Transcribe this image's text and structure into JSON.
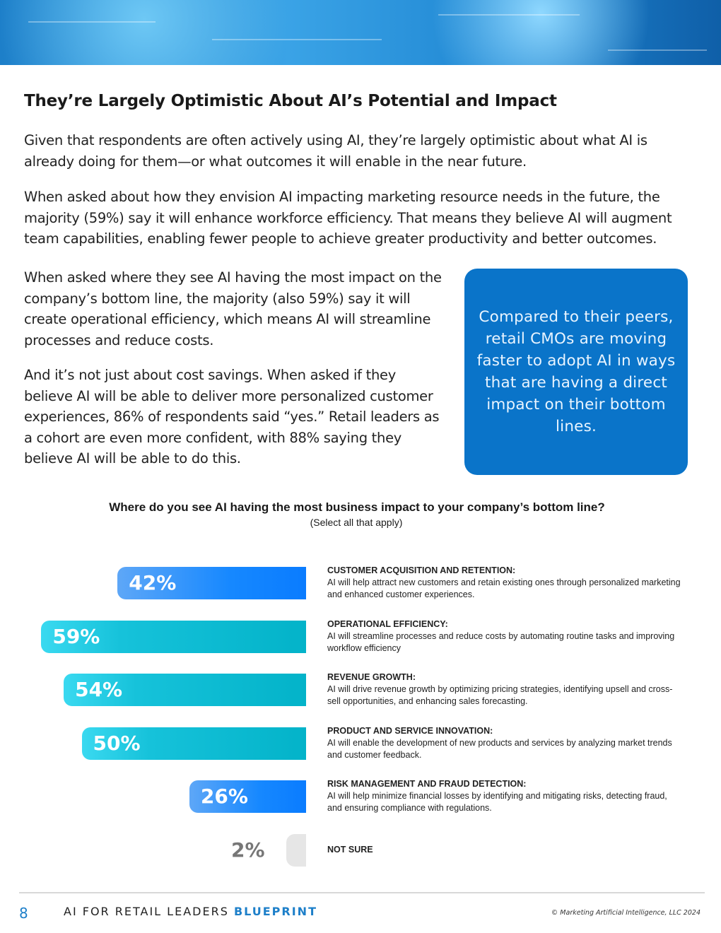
{
  "heading": "They’re Largely Optimistic About AI’s Potential and Impact",
  "paragraphs": [
    "Given that respondents are often actively using AI, they’re largely optimistic about what AI is already doing for them—or what outcomes it will enable in the near future.",
    "When asked about how they envision AI impacting marketing resource needs in the future, the majority (59%) say it will enhance workforce efficiency. That means they believe AI will augment team capabilities, enabling fewer people to achieve greater productivity and better outcomes.",
    "When asked where they see AI having the most impact on the company’s bottom line, the majority (also 59%) say it will create operational efficiency, which means AI will streamline processes and reduce costs.",
    "And it’s not just about cost savings. When asked if they believe AI will be able to deliver more personalized customer experiences, 86% of respondents said “yes.” Retail leaders as a cohort are even more confident, with 88% saying they believe AI will be able to do this."
  ],
  "callout": "Compared to their peers, retail CMOs are moving faster to adopt AI in ways that are having a direct impact on their bottom lines.",
  "chart_data": {
    "type": "bar",
    "orientation": "horizontal",
    "title": "Where do you see AI having the most business impact to your company’s bottom line?",
    "subtitle": "(Select all that apply)",
    "categories": [
      {
        "label": "CUSTOMER ACQUISITION AND RETENTION:",
        "desc": "AI will help attract new customers and retain existing ones through personalized marketing and enhanced customer experiences."
      },
      {
        "label": "OPERATIONAL EFFICIENCY:",
        "desc": "AI will streamline processes and reduce costs by automating routine tasks and improving workflow efficiency"
      },
      {
        "label": "REVENUE GROWTH:",
        "desc": "AI will drive revenue growth by optimizing pricing strategies, identifying upsell and cross-sell opportunities, and enhancing sales forecasting."
      },
      {
        "label": "PRODUCT AND SERVICE INNOVATION:",
        "desc": "AI will enable the development of new products and services by analyzing market trends and customer feedback."
      },
      {
        "label": "RISK MANAGEMENT AND FRAUD DETECTION:",
        "desc": "AI will help minimize financial losses by identifying and mitigating risks, detecting fraud, and ensuring compliance with regulations."
      },
      {
        "label": "NOT SURE",
        "desc": ""
      }
    ],
    "values": [
      42,
      59,
      54,
      50,
      26,
      2
    ],
    "value_labels": [
      "42%",
      "59%",
      "54%",
      "50%",
      "26%",
      "2%"
    ],
    "bar_colors": [
      "blue",
      "teal",
      "teal",
      "teal",
      "blue",
      "grey"
    ],
    "colors": {
      "blue": "#0a7cff",
      "teal": "#03b3c9",
      "grey": "#e6e6e6"
    }
  },
  "footer": {
    "page": "8",
    "title": "AI FOR RETAIL LEADERS",
    "title_bold": "BLUEPRINT",
    "copyright": "© Marketing Artificial Intelligence, LLC 2024"
  }
}
